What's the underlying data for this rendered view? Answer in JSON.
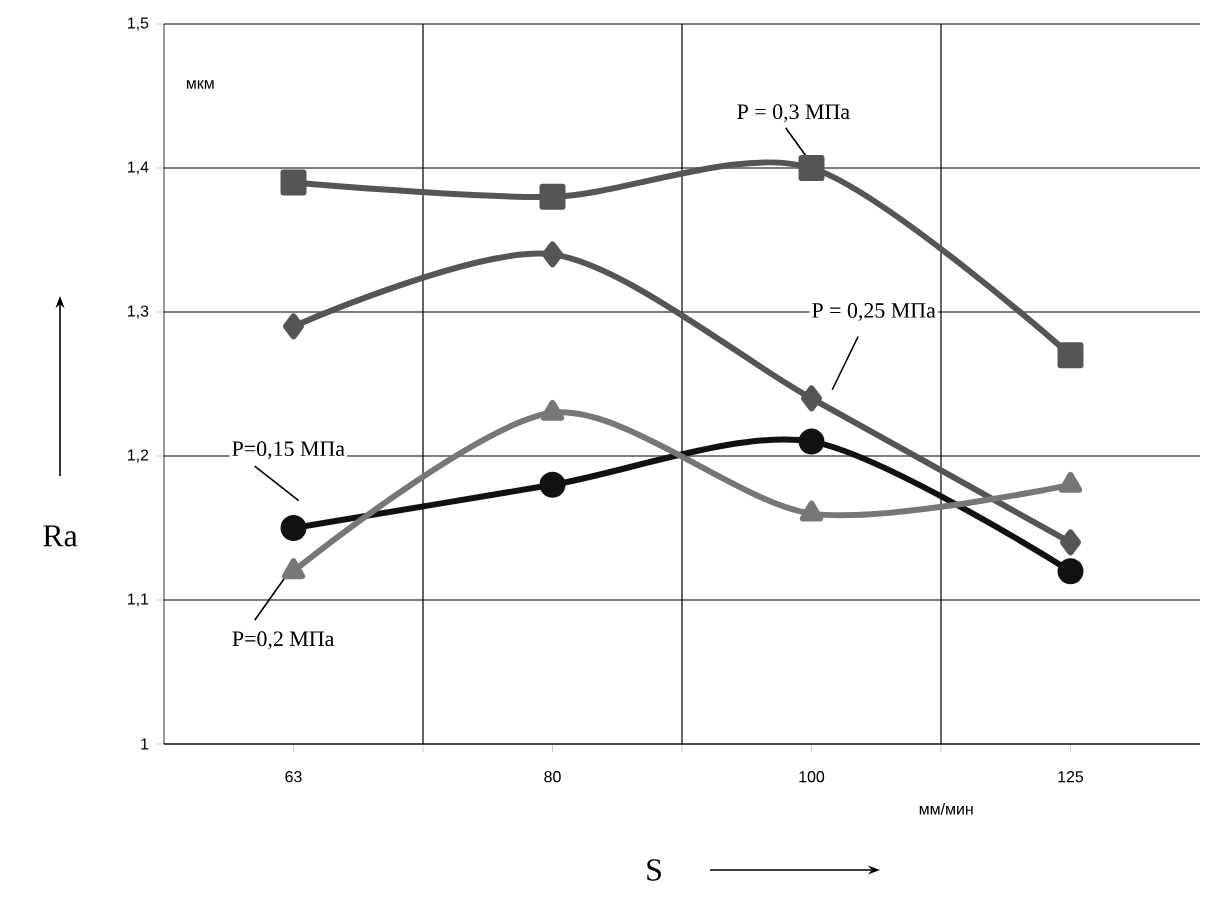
{
  "chart_data": {
    "type": "line",
    "xlabel": "S",
    "ylabel": "Ra",
    "annotations": [
      "мкм",
      "мм/мин"
    ],
    "categories": [
      "63",
      "80",
      "100",
      "125"
    ],
    "ylim": [
      1,
      1.5
    ],
    "yticks": [
      1,
      {
        "value": 1.1,
        "label": "1,1"
      },
      {
        "value": 1.2,
        "label": "1,2"
      },
      {
        "value": 1.3,
        "label": "1,3"
      },
      {
        "value": 1.4,
        "label": "1,4"
      },
      {
        "value": 1.5,
        "label": "1,5"
      }
    ],
    "grid": true,
    "line_style": "solid",
    "series": [
      {
        "name": "P = 0,3 МПа",
        "color": "#555555",
        "marker": "square",
        "values": [
          1.39,
          1.38,
          1.4,
          1.27
        ]
      },
      {
        "name": "P = 0,25 МПа",
        "color": "#555555",
        "marker": "diamond",
        "values": [
          1.29,
          1.34,
          1.24,
          1.14
        ]
      },
      {
        "name": "P=0,15 МПа",
        "color": "#111111",
        "marker": "circle",
        "values": [
          1.15,
          1.18,
          1.21,
          1.12
        ]
      },
      {
        "name": "P=0,2 МПа",
        "color": "#777777",
        "marker": "triangle",
        "values": [
          1.12,
          1.23,
          1.16,
          1.18
        ]
      }
    ]
  }
}
